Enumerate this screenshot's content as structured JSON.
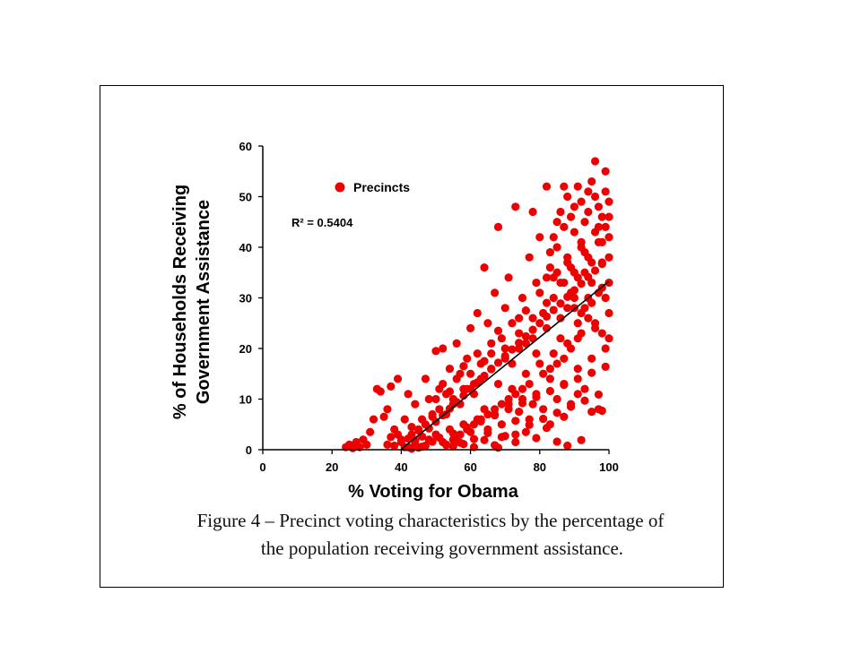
{
  "caption": {
    "line1": "Figure 4 – Precinct voting characteristics by the percentage of",
    "line2": "the population receiving government assistance."
  },
  "chart_data": {
    "type": "scatter",
    "xlabel": "% Voting for Obama",
    "ylabel_lines": [
      "% of Households Receiving",
      "Government Assistance"
    ],
    "xlim": [
      0,
      100
    ],
    "ylim": [
      0,
      60
    ],
    "xticks": [
      0,
      20,
      40,
      60,
      80,
      100
    ],
    "yticks": [
      0,
      10,
      20,
      30,
      40,
      50,
      60
    ],
    "legend": "top-left",
    "series": [
      {
        "name": "Precincts",
        "color": "#ee0000",
        "points": [
          [
            24,
            0.5
          ],
          [
            25,
            1
          ],
          [
            26,
            0.3
          ],
          [
            27,
            1.5
          ],
          [
            28,
            0.5
          ],
          [
            29,
            2
          ],
          [
            30,
            1
          ],
          [
            31,
            3.5
          ],
          [
            32,
            6
          ],
          [
            33,
            12
          ],
          [
            34,
            11.5
          ],
          [
            35,
            6.5
          ],
          [
            36,
            8
          ],
          [
            37,
            12.5
          ],
          [
            38,
            4
          ],
          [
            39,
            14
          ],
          [
            40,
            2
          ],
          [
            41,
            6
          ],
          [
            42,
            11
          ],
          [
            43,
            3
          ],
          [
            44,
            9
          ],
          [
            45,
            4
          ],
          [
            46,
            6
          ],
          [
            47,
            14
          ],
          [
            48,
            10
          ],
          [
            49,
            7
          ],
          [
            50,
            19.5
          ],
          [
            51,
            12
          ],
          [
            52,
            20
          ],
          [
            53,
            11
          ],
          [
            54,
            16
          ],
          [
            55,
            9
          ],
          [
            56,
            21
          ],
          [
            57,
            15
          ],
          [
            58,
            12
          ],
          [
            59,
            18
          ],
          [
            60,
            24
          ],
          [
            61,
            13
          ],
          [
            62,
            27
          ],
          [
            63,
            17
          ],
          [
            64,
            36
          ],
          [
            65,
            25
          ],
          [
            66,
            19
          ],
          [
            67,
            31
          ],
          [
            68,
            44
          ],
          [
            69,
            22
          ],
          [
            70,
            28
          ],
          [
            71,
            34
          ],
          [
            72,
            17
          ],
          [
            73,
            48
          ],
          [
            74,
            26
          ],
          [
            75,
            30
          ],
          [
            76,
            21
          ],
          [
            77,
            38
          ],
          [
            78,
            47
          ],
          [
            79,
            33
          ],
          [
            80,
            42
          ],
          [
            81,
            27
          ],
          [
            82,
            52
          ],
          [
            83,
            36
          ],
          [
            84,
            30
          ],
          [
            85,
            45
          ],
          [
            86,
            22
          ],
          [
            87,
            52
          ],
          [
            88,
            38
          ],
          [
            89,
            31
          ],
          [
            90,
            48
          ],
          [
            91,
            25
          ],
          [
            92,
            41
          ],
          [
            93,
            35
          ],
          [
            94,
            51
          ],
          [
            95,
            29
          ],
          [
            96,
            57
          ],
          [
            97,
            44
          ],
          [
            98,
            37
          ],
          [
            99,
            55
          ],
          [
            100,
            33
          ],
          [
            36,
            1
          ],
          [
            37,
            2.5
          ],
          [
            38,
            0.8
          ],
          [
            39,
            3
          ],
          [
            40,
            1.5
          ],
          [
            41,
            0.5
          ],
          [
            42,
            2.2
          ],
          [
            43,
            4.5
          ],
          [
            44,
            1.2
          ],
          [
            45,
            3.8
          ],
          [
            46,
            0.6
          ],
          [
            47,
            5
          ],
          [
            48,
            2
          ],
          [
            49,
            6.5
          ],
          [
            50,
            3
          ],
          [
            51,
            8
          ],
          [
            52,
            1.5
          ],
          [
            53,
            7
          ],
          [
            54,
            4
          ],
          [
            55,
            10
          ],
          [
            56,
            2.5
          ],
          [
            57,
            9
          ],
          [
            58,
            5
          ],
          [
            59,
            12
          ],
          [
            60,
            3.5
          ],
          [
            61,
            11
          ],
          [
            62,
            6
          ],
          [
            63,
            14
          ],
          [
            64,
            8
          ],
          [
            65,
            4
          ],
          [
            66,
            16
          ],
          [
            67,
            7
          ],
          [
            68,
            13
          ],
          [
            69,
            5
          ],
          [
            70,
            18
          ],
          [
            71,
            9
          ],
          [
            72,
            12
          ],
          [
            73,
            3
          ],
          [
            74,
            20
          ],
          [
            75,
            10
          ],
          [
            76,
            15
          ],
          [
            77,
            6
          ],
          [
            78,
            22
          ],
          [
            79,
            11
          ],
          [
            80,
            17
          ],
          [
            81,
            8
          ],
          [
            82,
            24
          ],
          [
            83,
            14
          ],
          [
            84,
            19
          ],
          [
            85,
            10
          ],
          [
            86,
            26
          ],
          [
            87,
            13
          ],
          [
            88,
            21
          ],
          [
            89,
            9
          ],
          [
            90,
            28
          ],
          [
            91,
            16
          ],
          [
            92,
            23
          ],
          [
            93,
            12
          ],
          [
            94,
            30
          ],
          [
            95,
            18
          ],
          [
            96,
            25
          ],
          [
            97,
            8
          ],
          [
            98,
            32
          ],
          [
            99,
            20
          ],
          [
            100,
            27
          ],
          [
            42,
            0.5
          ],
          [
            44,
            1.8
          ],
          [
            46,
            2.6
          ],
          [
            48,
            4.2
          ],
          [
            50,
            5.5
          ],
          [
            52,
            6.8
          ],
          [
            54,
            8.1
          ],
          [
            56,
            9.4
          ],
          [
            58,
            10.7
          ],
          [
            60,
            12
          ],
          [
            62,
            13.3
          ],
          [
            64,
            14.6
          ],
          [
            66,
            15.9
          ],
          [
            68,
            17.2
          ],
          [
            70,
            18.5
          ],
          [
            72,
            19.8
          ],
          [
            74,
            21.1
          ],
          [
            76,
            22.4
          ],
          [
            78,
            23.7
          ],
          [
            80,
            25
          ],
          [
            82,
            26.3
          ],
          [
            84,
            27.6
          ],
          [
            86,
            28.9
          ],
          [
            88,
            30.2
          ],
          [
            90,
            31.5
          ],
          [
            92,
            32.8
          ],
          [
            94,
            34.1
          ],
          [
            96,
            35.4
          ],
          [
            98,
            36.7
          ],
          [
            100,
            38
          ],
          [
            43,
            0.2
          ],
          [
            45,
            0.4
          ],
          [
            47,
            0.8
          ],
          [
            49,
            1.6
          ],
          [
            51,
            2.4
          ],
          [
            53,
            0.9
          ],
          [
            55,
            3.2
          ],
          [
            57,
            1.4
          ],
          [
            59,
            4.4
          ],
          [
            61,
            2.1
          ],
          [
            63,
            5.6
          ],
          [
            65,
            3.3
          ],
          [
            67,
            6.8
          ],
          [
            69,
            2.5
          ],
          [
            71,
            8
          ],
          [
            73,
            5.7
          ],
          [
            75,
            9.2
          ],
          [
            77,
            4.9
          ],
          [
            79,
            10.4
          ],
          [
            81,
            6.1
          ],
          [
            83,
            11.6
          ],
          [
            85,
            7.3
          ],
          [
            87,
            12.8
          ],
          [
            89,
            8.5
          ],
          [
            91,
            14
          ],
          [
            93,
            9.7
          ],
          [
            95,
            15.2
          ],
          [
            97,
            10.9
          ],
          [
            99,
            16.4
          ],
          [
            50,
            10
          ],
          [
            52,
            13
          ],
          [
            54,
            11.5
          ],
          [
            56,
            14
          ],
          [
            58,
            16.5
          ],
          [
            60,
            15
          ],
          [
            62,
            19
          ],
          [
            64,
            17.5
          ],
          [
            66,
            21
          ],
          [
            68,
            23.5
          ],
          [
            70,
            20
          ],
          [
            72,
            25
          ],
          [
            74,
            23
          ],
          [
            76,
            27.5
          ],
          [
            78,
            26
          ],
          [
            80,
            31
          ],
          [
            82,
            29
          ],
          [
            84,
            34
          ],
          [
            86,
            33
          ],
          [
            88,
            37
          ],
          [
            90,
            35
          ],
          [
            92,
            40
          ],
          [
            94,
            38
          ],
          [
            96,
            43
          ],
          [
            98,
            41
          ],
          [
            100,
            46
          ],
          [
            55,
            0.7
          ],
          [
            58,
            1.1
          ],
          [
            61,
            0.5
          ],
          [
            64,
            1.9
          ],
          [
            67,
            0.9
          ],
          [
            70,
            2.7
          ],
          [
            73,
            1.5
          ],
          [
            76,
            3.5
          ],
          [
            79,
            2.3
          ],
          [
            82,
            4.3
          ],
          [
            85,
            1.6
          ],
          [
            88,
            0.8
          ],
          [
            92,
            1.9
          ],
          [
            68,
            0.4
          ],
          [
            74,
            7.5
          ],
          [
            78,
            9
          ],
          [
            83,
            5
          ],
          [
            87,
            6.5
          ],
          [
            91,
            11
          ],
          [
            95,
            7.5
          ],
          [
            98,
            7.7
          ],
          [
            84,
            42
          ],
          [
            85,
            40
          ],
          [
            86,
            47
          ],
          [
            87,
            44
          ],
          [
            88,
            50
          ],
          [
            89,
            46
          ],
          [
            90,
            43
          ],
          [
            91,
            52
          ],
          [
            92,
            49
          ],
          [
            93,
            45
          ],
          [
            94,
            47
          ],
          [
            95,
            53
          ],
          [
            96,
            50
          ],
          [
            97,
            48
          ],
          [
            98,
            46
          ],
          [
            99,
            51
          ],
          [
            100,
            49
          ],
          [
            89,
            36
          ],
          [
            91,
            34
          ],
          [
            93,
            39
          ],
          [
            95,
            37
          ],
          [
            97,
            41
          ],
          [
            99,
            44
          ],
          [
            100,
            42
          ],
          [
            82,
            34
          ],
          [
            83,
            39
          ],
          [
            85,
            35
          ],
          [
            87,
            33
          ],
          [
            88,
            28
          ],
          [
            90,
            30
          ],
          [
            92,
            27
          ],
          [
            94,
            26
          ],
          [
            96,
            24
          ],
          [
            98,
            23
          ],
          [
            100,
            22
          ],
          [
            99,
            30
          ],
          [
            97,
            31
          ],
          [
            95,
            33
          ],
          [
            93,
            28
          ],
          [
            91,
            22
          ],
          [
            89,
            20
          ],
          [
            87,
            18
          ],
          [
            85,
            17
          ],
          [
            83,
            16
          ],
          [
            81,
            15
          ],
          [
            79,
            19
          ],
          [
            77,
            13
          ],
          [
            75,
            12
          ],
          [
            73,
            11
          ],
          [
            71,
            10
          ],
          [
            69,
            9
          ],
          [
            67,
            8
          ],
          [
            65,
            7
          ],
          [
            63,
            6
          ],
          [
            61,
            5
          ],
          [
            59,
            4
          ],
          [
            57,
            3
          ],
          [
            55,
            2
          ],
          [
            53,
            1
          ]
        ]
      }
    ],
    "trendline": {
      "x": [
        40,
        100
      ],
      "y": [
        0.1,
        33.3
      ]
    },
    "r_squared_label": "R² = 0.5404"
  }
}
